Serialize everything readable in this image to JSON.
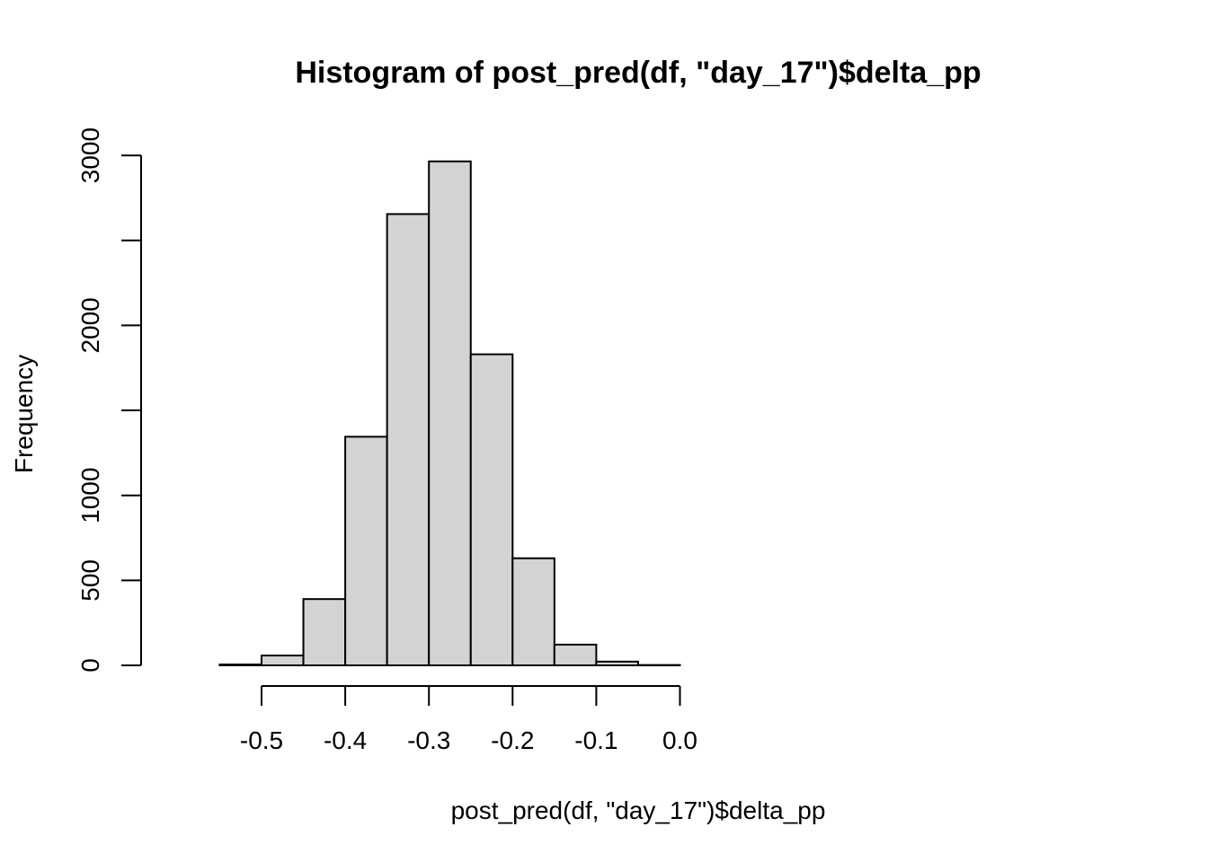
{
  "chart_data": {
    "type": "bar",
    "subtype": "histogram",
    "title": "Histogram of post_pred(df, \"day_17\")$delta_pp",
    "xlabel": "post_pred(df, \"day_17\")$delta_pp",
    "ylabel": "Frequency",
    "bins": [
      {
        "x0": -0.55,
        "x1": -0.5,
        "count": 5
      },
      {
        "x0": -0.5,
        "x1": -0.45,
        "count": 58
      },
      {
        "x0": -0.45,
        "x1": -0.4,
        "count": 390
      },
      {
        "x0": -0.4,
        "x1": -0.35,
        "count": 1345
      },
      {
        "x0": -0.35,
        "x1": -0.3,
        "count": 2655
      },
      {
        "x0": -0.3,
        "x1": -0.25,
        "count": 2965
      },
      {
        "x0": -0.25,
        "x1": -0.2,
        "count": 1830
      },
      {
        "x0": -0.2,
        "x1": -0.15,
        "count": 630
      },
      {
        "x0": -0.15,
        "x1": -0.1,
        "count": 122
      },
      {
        "x0": -0.1,
        "x1": -0.05,
        "count": 22
      },
      {
        "x0": -0.05,
        "x1": 0.0,
        "count": 2
      }
    ],
    "xlim": [
      -0.55,
      0.0
    ],
    "ylim": [
      0,
      3000
    ],
    "x_ticks": [
      -0.5,
      -0.4,
      -0.3,
      -0.2,
      -0.1,
      0.0
    ],
    "x_tick_labels": [
      "-0.5",
      "-0.4",
      "-0.3",
      "-0.2",
      "-0.1",
      "0.0"
    ],
    "y_ticks": [
      0,
      500,
      1000,
      1500,
      2000,
      2500,
      3000
    ],
    "y_tick_labels": [
      "0",
      "500",
      "1000",
      "",
      "2000",
      "",
      "3000"
    ],
    "bar_fill": "#d3d3d3",
    "bar_stroke": "#000000",
    "grid": false,
    "legend": "none"
  }
}
